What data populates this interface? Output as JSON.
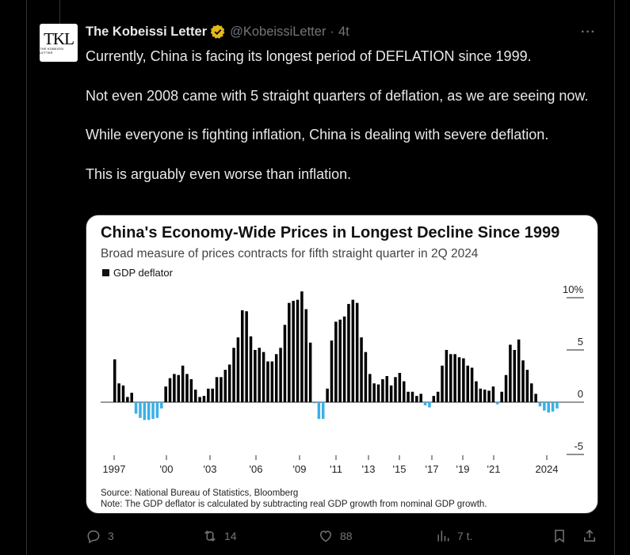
{
  "tweet": {
    "author_name": "The Kobeissi Letter",
    "avatar_text": "TKL",
    "avatar_subtext": "THE KOBEISSI LETTER",
    "handle": "@KobeissiLetter",
    "separator": "·",
    "time": "4t",
    "more": "···",
    "paragraphs": [
      "Currently, China is facing its longest period of DEFLATION since 1999.",
      "Not even 2008 came with 5 straight quarters of deflation, as we are seeing now.",
      "While everyone is fighting inflation, China is dealing with severe deflation.",
      "This is arguably even worse than inflation."
    ],
    "actions": {
      "replies": "3",
      "reposts": "14",
      "likes": "88",
      "views": "7 t."
    },
    "colors": {
      "background": "#000000",
      "text": "#e7e9ea",
      "muted": "#71767b",
      "verified": "#e2b719"
    }
  },
  "chart_data": {
    "type": "bar",
    "title": "China's Economy-Wide Prices in Longest Decline Since 1999",
    "subtitle": "Broad measure of prices contracts for fifth straight quarter in 2Q 2024",
    "legend": [
      "GDP deflator"
    ],
    "y_ticks": [
      "10%",
      "5",
      "0",
      "-5"
    ],
    "ylim": [
      -5,
      10
    ],
    "x_ticks": [
      "1997",
      "'00",
      "'03",
      "'06",
      "'09",
      "'11",
      "'13",
      "'15",
      "'17",
      "'19",
      "'21",
      "2024"
    ],
    "source": "Source: National Bureau of Statistics, Bloomberg",
    "note": "Note: The GDP deflator is calculated by subtracting real GDP growth from nominal GDP growth.",
    "positive_color": "#000000",
    "negative_color": "#3ab0e8",
    "series": [
      {
        "name": "GDP deflator",
        "values": [
          4.1,
          1.8,
          1.6,
          0.5,
          0.9,
          -1.1,
          -1.5,
          -1.7,
          -1.7,
          -1.6,
          -1.5,
          -0.6,
          1.5,
          2.3,
          2.7,
          2.6,
          3.5,
          2.7,
          2.2,
          1.2,
          0.5,
          0.6,
          1.3,
          1.3,
          2.4,
          2.4,
          3.1,
          3.6,
          5.2,
          6.2,
          8.8,
          8.7,
          6.3,
          5.0,
          5.2,
          4.8,
          3.9,
          3.9,
          4.6,
          5.2,
          7.4,
          9.5,
          9.7,
          9.8,
          10.6,
          8.9,
          5.7,
          -0.1,
          -1.6,
          -1.6,
          1.3,
          5.9,
          7.7,
          7.9,
          8.2,
          9.4,
          9.8,
          9.5,
          6.2,
          4.8,
          2.7,
          1.8,
          1.7,
          2.2,
          2.5,
          1.6,
          2.4,
          2.8,
          2.0,
          1.0,
          1.0,
          0.6,
          0.8,
          -0.3,
          -0.5,
          0.6,
          1.0,
          3.5,
          5.0,
          4.6,
          4.6,
          4.3,
          4.2,
          3.5,
          3.3,
          2.0,
          1.3,
          1.2,
          1.1,
          1.5,
          -0.2,
          1.0,
          2.6,
          5.5,
          5.0,
          6.0,
          4.0,
          3.1,
          1.8,
          0.8,
          -0.4,
          -0.8,
          -1.0,
          -0.9,
          -0.6
        ]
      }
    ]
  }
}
